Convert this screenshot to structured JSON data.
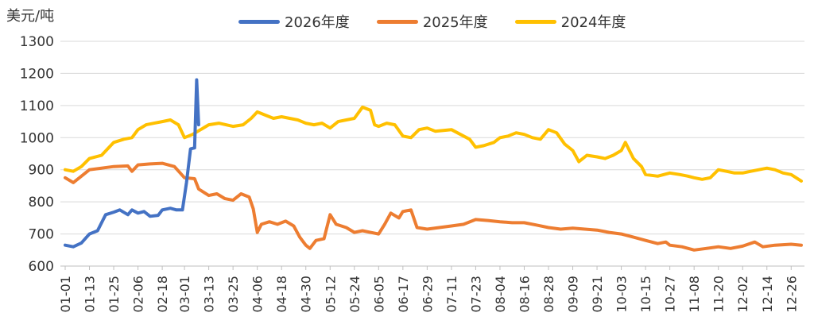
{
  "chart_data": {
    "type": "line",
    "ylabel": "美元/吨",
    "ylim": [
      600,
      1300
    ],
    "yticks": [
      600,
      700,
      800,
      900,
      1000,
      1100,
      1200,
      1300
    ],
    "grid": "horizontal",
    "legend_position": "top-center",
    "xticks": [
      "01-01",
      "01-13",
      "01-25",
      "02-06",
      "02-18",
      "03-01",
      "03-13",
      "03-25",
      "04-06",
      "04-18",
      "04-30",
      "05-12",
      "05-24",
      "06-05",
      "06-17",
      "06-29",
      "07-11",
      "07-23",
      "08-04",
      "08-16",
      "08-28",
      "09-09",
      "09-21",
      "10-03",
      "10-15",
      "10-27",
      "11-08",
      "11-20",
      "12-02",
      "12-14",
      "12-26"
    ],
    "series": [
      {
        "name": "2026年度",
        "color": "#4472C4",
        "points": [
          [
            "01-01",
            665
          ],
          [
            "01-05",
            660
          ],
          [
            "01-09",
            672
          ],
          [
            "01-13",
            700
          ],
          [
            "01-17",
            710
          ],
          [
            "01-21",
            760
          ],
          [
            "01-25",
            768
          ],
          [
            "01-28",
            775
          ],
          [
            "02-01",
            760
          ],
          [
            "02-03",
            775
          ],
          [
            "02-06",
            765
          ],
          [
            "02-09",
            770
          ],
          [
            "02-12",
            755
          ],
          [
            "02-16",
            758
          ],
          [
            "02-18",
            775
          ],
          [
            "02-22",
            780
          ],
          [
            "02-25",
            775
          ],
          [
            "02-28",
            775
          ],
          [
            "03-02",
            860
          ],
          [
            "03-04",
            965
          ],
          [
            "03-06",
            968
          ],
          [
            "03-07",
            1180
          ],
          [
            "03-08",
            1040
          ]
        ]
      },
      {
        "name": "2025年度",
        "color": "#ED7D31",
        "points": [
          [
            "01-01",
            875
          ],
          [
            "01-05",
            860
          ],
          [
            "01-09",
            880
          ],
          [
            "01-13",
            900
          ],
          [
            "01-19",
            905
          ],
          [
            "01-25",
            910
          ],
          [
            "02-01",
            912
          ],
          [
            "02-03",
            895
          ],
          [
            "02-06",
            915
          ],
          [
            "02-12",
            918
          ],
          [
            "02-18",
            920
          ],
          [
            "02-24",
            910
          ],
          [
            "03-01",
            875
          ],
          [
            "03-06",
            872
          ],
          [
            "03-08",
            840
          ],
          [
            "03-13",
            820
          ],
          [
            "03-17",
            825
          ],
          [
            "03-21",
            810
          ],
          [
            "03-25",
            805
          ],
          [
            "03-29",
            825
          ],
          [
            "04-02",
            815
          ],
          [
            "04-04",
            778
          ],
          [
            "04-06",
            705
          ],
          [
            "04-08",
            730
          ],
          [
            "04-12",
            738
          ],
          [
            "04-16",
            730
          ],
          [
            "04-20",
            740
          ],
          [
            "04-24",
            725
          ],
          [
            "04-27",
            690
          ],
          [
            "04-30",
            665
          ],
          [
            "05-02",
            655
          ],
          [
            "05-05",
            680
          ],
          [
            "05-09",
            685
          ],
          [
            "05-12",
            760
          ],
          [
            "05-15",
            730
          ],
          [
            "05-20",
            720
          ],
          [
            "05-24",
            705
          ],
          [
            "05-28",
            710
          ],
          [
            "06-01",
            705
          ],
          [
            "06-05",
            700
          ],
          [
            "06-08",
            730
          ],
          [
            "06-11",
            765
          ],
          [
            "06-15",
            750
          ],
          [
            "06-17",
            770
          ],
          [
            "06-21",
            775
          ],
          [
            "06-24",
            720
          ],
          [
            "06-29",
            715
          ],
          [
            "07-05",
            720
          ],
          [
            "07-11",
            725
          ],
          [
            "07-17",
            730
          ],
          [
            "07-23",
            745
          ],
          [
            "07-29",
            742
          ],
          [
            "08-04",
            738
          ],
          [
            "08-10",
            735
          ],
          [
            "08-16",
            735
          ],
          [
            "08-22",
            728
          ],
          [
            "08-28",
            720
          ],
          [
            "09-03",
            715
          ],
          [
            "09-09",
            718
          ],
          [
            "09-15",
            715
          ],
          [
            "09-21",
            712
          ],
          [
            "09-27",
            705
          ],
          [
            "10-03",
            700
          ],
          [
            "10-09",
            690
          ],
          [
            "10-15",
            680
          ],
          [
            "10-21",
            670
          ],
          [
            "10-25",
            675
          ],
          [
            "10-27",
            665
          ],
          [
            "11-02",
            660
          ],
          [
            "11-08",
            650
          ],
          [
            "11-14",
            655
          ],
          [
            "11-20",
            660
          ],
          [
            "11-26",
            655
          ],
          [
            "12-02",
            662
          ],
          [
            "12-08",
            675
          ],
          [
            "12-12",
            660
          ],
          [
            "12-18",
            665
          ],
          [
            "12-26",
            668
          ],
          [
            "12-31",
            665
          ]
        ]
      },
      {
        "name": "2024年度",
        "color": "#FFC000",
        "points": [
          [
            "01-01",
            900
          ],
          [
            "01-05",
            895
          ],
          [
            "01-09",
            910
          ],
          [
            "01-13",
            935
          ],
          [
            "01-19",
            945
          ],
          [
            "01-25",
            985
          ],
          [
            "01-30",
            995
          ],
          [
            "02-03",
            1000
          ],
          [
            "02-06",
            1025
          ],
          [
            "02-10",
            1040
          ],
          [
            "02-14",
            1045
          ],
          [
            "02-18",
            1050
          ],
          [
            "02-22",
            1055
          ],
          [
            "02-26",
            1040
          ],
          [
            "03-01",
            1000
          ],
          [
            "03-05",
            1010
          ],
          [
            "03-09",
            1025
          ],
          [
            "03-13",
            1040
          ],
          [
            "03-18",
            1045
          ],
          [
            "03-25",
            1035
          ],
          [
            "03-30",
            1040
          ],
          [
            "04-03",
            1060
          ],
          [
            "04-06",
            1080
          ],
          [
            "04-10",
            1070
          ],
          [
            "04-14",
            1060
          ],
          [
            "04-18",
            1065
          ],
          [
            "04-22",
            1060
          ],
          [
            "04-26",
            1055
          ],
          [
            "04-30",
            1045
          ],
          [
            "05-04",
            1040
          ],
          [
            "05-08",
            1045
          ],
          [
            "05-12",
            1030
          ],
          [
            "05-16",
            1050
          ],
          [
            "05-20",
            1055
          ],
          [
            "05-24",
            1060
          ],
          [
            "05-28",
            1095
          ],
          [
            "06-01",
            1085
          ],
          [
            "06-03",
            1040
          ],
          [
            "06-05",
            1035
          ],
          [
            "06-09",
            1045
          ],
          [
            "06-13",
            1040
          ],
          [
            "06-17",
            1005
          ],
          [
            "06-21",
            1000
          ],
          [
            "06-25",
            1025
          ],
          [
            "06-29",
            1030
          ],
          [
            "07-03",
            1020
          ],
          [
            "07-11",
            1025
          ],
          [
            "07-17",
            1005
          ],
          [
            "07-20",
            995
          ],
          [
            "07-23",
            970
          ],
          [
            "07-27",
            975
          ],
          [
            "08-01",
            985
          ],
          [
            "08-04",
            1000
          ],
          [
            "08-08",
            1005
          ],
          [
            "08-12",
            1015
          ],
          [
            "08-16",
            1010
          ],
          [
            "08-20",
            1000
          ],
          [
            "08-24",
            995
          ],
          [
            "08-28",
            1025
          ],
          [
            "09-01",
            1015
          ],
          [
            "09-05",
            980
          ],
          [
            "09-09",
            960
          ],
          [
            "09-12",
            925
          ],
          [
            "09-16",
            945
          ],
          [
            "09-21",
            940
          ],
          [
            "09-25",
            935
          ],
          [
            "09-29",
            945
          ],
          [
            "10-03",
            960
          ],
          [
            "10-05",
            985
          ],
          [
            "10-09",
            935
          ],
          [
            "10-13",
            910
          ],
          [
            "10-15",
            885
          ],
          [
            "10-21",
            880
          ],
          [
            "10-27",
            890
          ],
          [
            "11-01",
            885
          ],
          [
            "11-05",
            880
          ],
          [
            "11-08",
            875
          ],
          [
            "11-12",
            870
          ],
          [
            "11-16",
            875
          ],
          [
            "11-20",
            900
          ],
          [
            "11-24",
            895
          ],
          [
            "11-28",
            890
          ],
          [
            "12-02",
            890
          ],
          [
            "12-06",
            895
          ],
          [
            "12-10",
            900
          ],
          [
            "12-14",
            905
          ],
          [
            "12-18",
            900
          ],
          [
            "12-22",
            890
          ],
          [
            "12-26",
            885
          ],
          [
            "12-31",
            865
          ]
        ]
      }
    ]
  }
}
